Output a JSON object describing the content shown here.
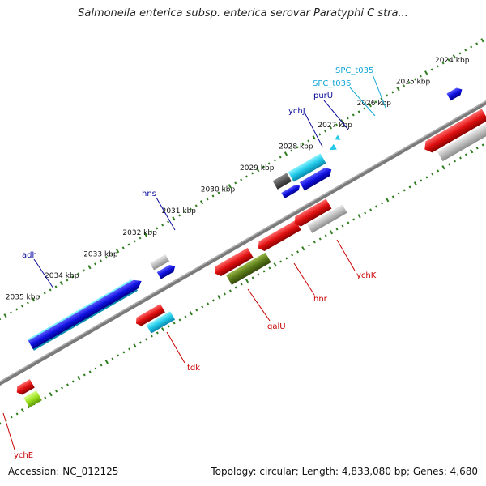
{
  "title": "Salmonella enterica subsp. enterica serovar Paratyphi C stra...",
  "footer": {
    "accession": "Accession: NC_012125",
    "summary": "Topology: circular; Length: 4,833,080 bp; Genes: 4,680"
  },
  "colors": {
    "backbone": "#7a7a7a",
    "tick_green": "#2f7d1f",
    "forward_cds": "#1010e0",
    "reverse_cds": "#e01010",
    "misc_feature": "#b8b8b8",
    "dark_feature": "#555555",
    "cyan_feature": "#20c8e8",
    "olive_feature": "#5a7a18",
    "lime_feature": "#9de020",
    "label_blue": "#0a0a9c",
    "label_red": "#c80000",
    "label_cyan": "#12a6d6"
  },
  "ticks": [
    "2024 kbp",
    "2025 kbp",
    "2026 kbp",
    "2027 kbp",
    "2028 kbp",
    "2029 kbp",
    "2030 kbp",
    "2031 kbp",
    "2032 kbp",
    "2033 kbp",
    "2034 kbp",
    "2035 kbp"
  ],
  "gene_labels": {
    "spc_t035": "SPC_t035",
    "spc_t036": "SPC_t036",
    "purU": "purU",
    "ychJ": "ychJ",
    "hns": "hns",
    "adh": "adh",
    "ychK": "ychK",
    "hnr": "hnr",
    "galU": "galU",
    "tdk": "tdk",
    "ychE": "ychE"
  }
}
